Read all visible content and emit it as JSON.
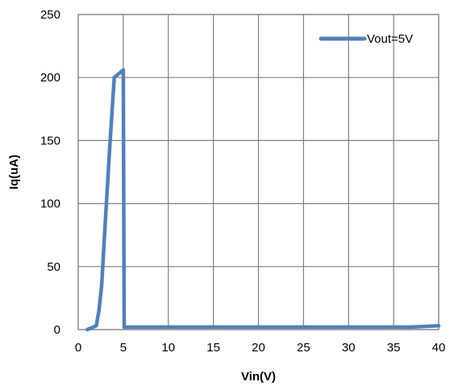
{
  "chart_data": {
    "type": "line",
    "title": "",
    "xlabel": "Vin(V)",
    "ylabel": "Iq(uA)",
    "xlim": [
      0,
      40
    ],
    "ylim": [
      0,
      250
    ],
    "x_ticks": [
      0,
      5,
      10,
      15,
      20,
      25,
      30,
      35,
      40
    ],
    "y_ticks": [
      0,
      50,
      100,
      150,
      200,
      250
    ],
    "x_tick_labels": [
      "0",
      "5",
      "10",
      "15",
      "20",
      "25",
      "30",
      "35",
      "40"
    ],
    "y_tick_labels": [
      "0",
      "50",
      "100",
      "150",
      "200",
      "250"
    ],
    "grid": true,
    "legend": {
      "position": "top-right"
    },
    "series": [
      {
        "name": "Vout=5V",
        "color": "#4F81BD",
        "x": [
          1,
          1.5,
          2,
          2.3,
          2.6,
          3,
          3.5,
          4,
          5,
          5.1,
          10,
          20,
          30,
          37,
          40
        ],
        "y": [
          0,
          1.5,
          3,
          15,
          35,
          85,
          145,
          200,
          206,
          2,
          2,
          2,
          2,
          2,
          3
        ]
      }
    ]
  },
  "colors": {
    "background": "#ffffff",
    "plot_border": "#808080",
    "gridline": "#808080",
    "series_line": "#4F81BD",
    "text": "#000000"
  }
}
